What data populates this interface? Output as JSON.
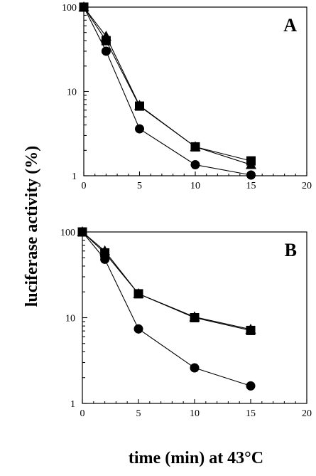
{
  "figure": {
    "ylabel": "luciferase activity (%)",
    "xlabel": "time (min) at 43°C"
  },
  "chart_data": [
    {
      "type": "line",
      "panel": "A",
      "x": [
        0,
        2,
        5,
        10,
        15
      ],
      "xlim": [
        0,
        20
      ],
      "xticks": [
        "0",
        "5",
        "10",
        "15",
        "20"
      ],
      "xtick_values": [
        0,
        5,
        10,
        15,
        20
      ],
      "yscale": "log",
      "ylim": [
        1,
        100
      ],
      "yticks": [
        "1",
        "10",
        "100"
      ],
      "ytick_values": [
        1,
        10,
        100
      ],
      "grid": false,
      "legend": "none",
      "series": [
        {
          "marker": "triangle",
          "values": [
            100,
            45,
            6.8,
            2.2,
            1.35
          ]
        },
        {
          "marker": "square",
          "values": [
            100,
            40,
            6.7,
            2.2,
            1.5
          ]
        },
        {
          "marker": "circle",
          "values": [
            100,
            30,
            3.6,
            1.35,
            1.02
          ]
        }
      ]
    },
    {
      "type": "line",
      "panel": "B",
      "x": [
        0,
        2,
        5,
        10,
        15
      ],
      "xlim": [
        0,
        20
      ],
      "xticks": [
        "0",
        "5",
        "10",
        "15",
        "20"
      ],
      "xtick_values": [
        0,
        5,
        10,
        15,
        20
      ],
      "yscale": "log",
      "ylim": [
        1,
        100
      ],
      "yticks": [
        "1",
        "10",
        "100"
      ],
      "ytick_values": [
        1,
        10,
        100
      ],
      "grid": false,
      "legend": "none",
      "series": [
        {
          "marker": "triangle",
          "values": [
            100,
            60,
            19,
            10.2,
            7.3
          ]
        },
        {
          "marker": "square",
          "values": [
            100,
            57,
            19,
            10,
            7.1
          ]
        },
        {
          "marker": "circle",
          "values": [
            100,
            48,
            7.4,
            2.6,
            1.6
          ],
          "error": [
            0,
            3,
            0.9,
            0.25,
            0.18
          ]
        }
      ]
    }
  ]
}
